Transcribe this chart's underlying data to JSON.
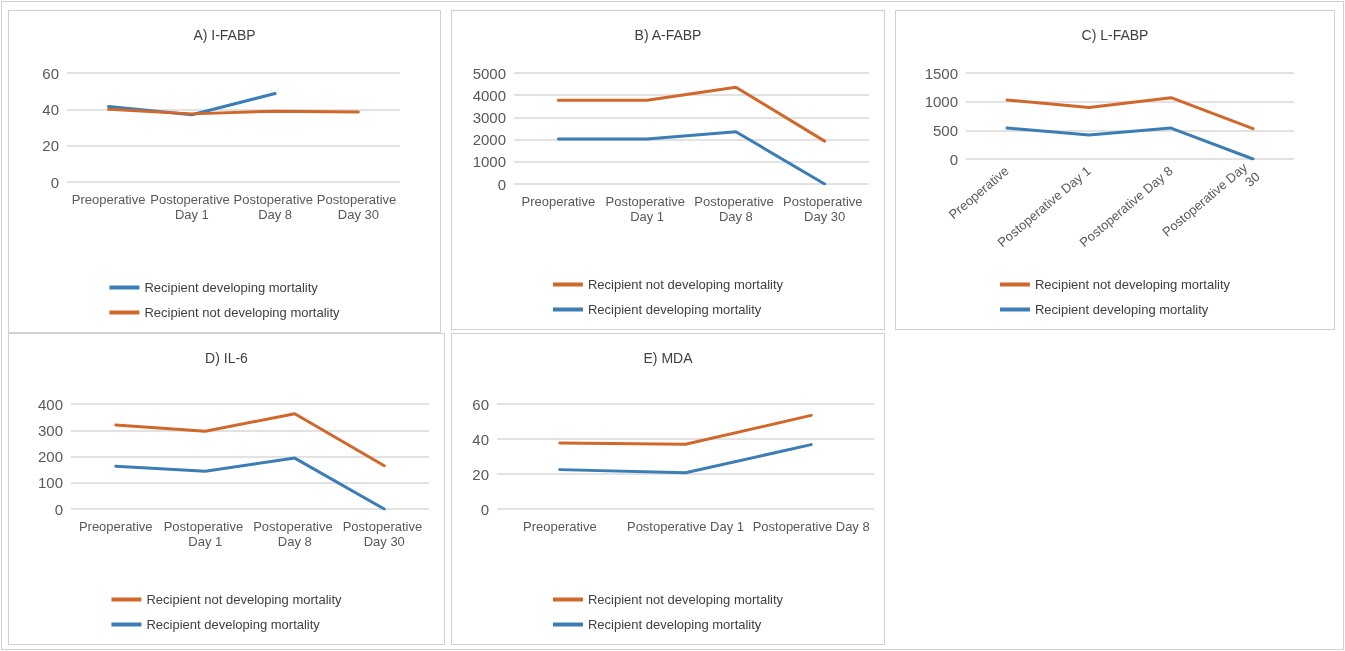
{
  "chart_data": [
    {
      "type": "line",
      "title": "A) I-FABP",
      "categories": [
        "Preoperative",
        "Postoperative Day 1",
        "Postoperative Day 8",
        "Postoperative Day 30"
      ],
      "series": [
        {
          "name": "Recipient developing mortality",
          "color": "#3b7db5",
          "values": [
            41.5,
            37,
            48.7,
            null
          ]
        },
        {
          "name": "Recipient not developing mortality",
          "color": "#d0682c",
          "values": [
            40,
            37.5,
            39,
            38.5
          ]
        }
      ],
      "ylim": [
        0,
        60
      ],
      "yticks": [
        0,
        20,
        40,
        60
      ],
      "grid": "y",
      "legend": "bottom"
    },
    {
      "type": "line",
      "title": "B) A-FABP",
      "categories": [
        "Preoperative",
        "Postoperative Day 1",
        "Postoperative Day 8",
        "Postoperative Day 30"
      ],
      "series": [
        {
          "name": "Recipient not developing mortality",
          "color": "#d0682c",
          "values": [
            3770,
            3770,
            4360,
            1930
          ]
        },
        {
          "name": "Recipient developing mortality",
          "color": "#3b7db5",
          "values": [
            2030,
            2030,
            2350,
            0
          ]
        }
      ],
      "ylim": [
        0,
        5000
      ],
      "yticks": [
        0,
        1000,
        2000,
        3000,
        4000,
        5000
      ],
      "grid": "y",
      "legend": "bottom"
    },
    {
      "type": "line",
      "title": "C) L-FABP",
      "categories": [
        "Preoperative",
        "Postoperative Day 1",
        "Postoperative Day 8",
        "Postoperative Day 30"
      ],
      "series": [
        {
          "name": "Recipient not developing mortality",
          "color": "#d0682c",
          "values": [
            1030,
            900,
            1070,
            530
          ]
        },
        {
          "name": "Recipient developing mortality",
          "color": "#3b7db5",
          "values": [
            540,
            420,
            540,
            0
          ]
        }
      ],
      "ylim": [
        0,
        1500
      ],
      "yticks": [
        0,
        500,
        1000,
        1500
      ],
      "grid": "y",
      "legend": "bottom"
    },
    {
      "type": "line",
      "title": "D) IL-6",
      "categories": [
        "Preoperative",
        "Postoperative Day 1",
        "Postoperative Day 8",
        "Postoperative Day 30"
      ],
      "series": [
        {
          "name": "Recipient not developing mortality",
          "color": "#d0682c",
          "values": [
            320,
            296,
            363,
            165
          ]
        },
        {
          "name": "Recipient developing mortality",
          "color": "#3b7db5",
          "values": [
            163,
            144,
            194,
            0
          ]
        }
      ],
      "ylim": [
        0,
        400
      ],
      "yticks": [
        0,
        100,
        200,
        300,
        400
      ],
      "grid": "y",
      "legend": "bottom"
    },
    {
      "type": "line",
      "title": "E) MDA",
      "categories": [
        "Preoperative",
        "Postoperative Day 1",
        "Postoperative Day 8"
      ],
      "series": [
        {
          "name": "Recipient not developing mortality",
          "color": "#d0682c",
          "values": [
            37.7,
            37,
            53.5
          ]
        },
        {
          "name": "Recipient developing mortality",
          "color": "#3b7db5",
          "values": [
            22.5,
            20.7,
            36.8
          ]
        }
      ],
      "ylim": [
        0,
        60
      ],
      "yticks": [
        0,
        20,
        40,
        60
      ],
      "grid": "y",
      "legend": "bottom"
    }
  ]
}
